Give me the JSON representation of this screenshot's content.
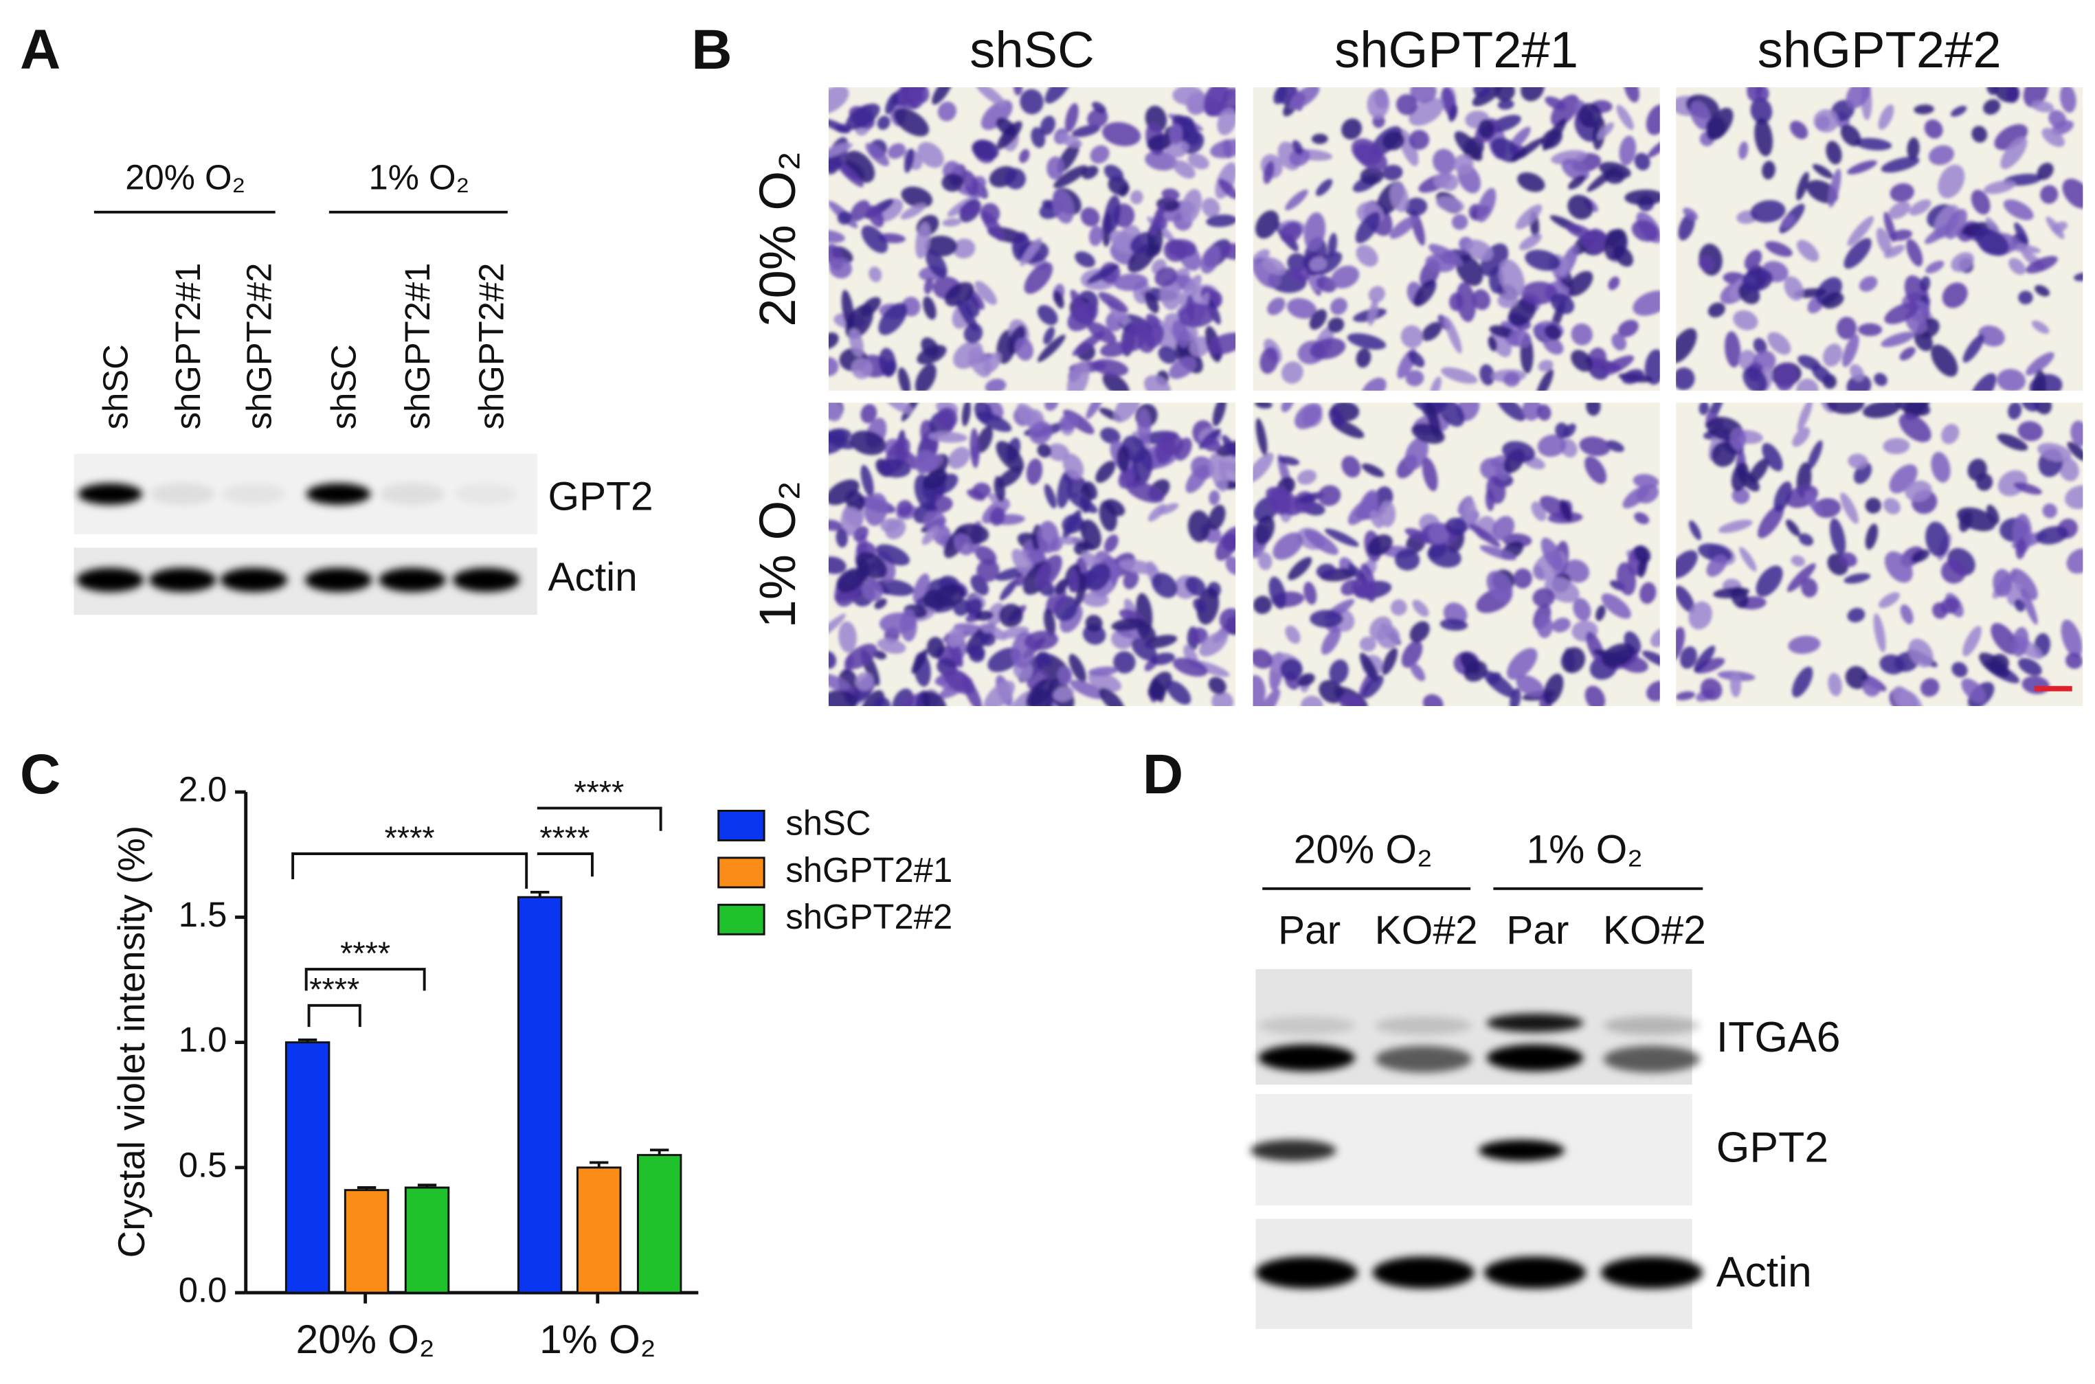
{
  "panel_a": {
    "label": "A",
    "conditions": [
      "20% O₂",
      "1% O₂"
    ],
    "lanes": [
      "shSC",
      "shGPT2#1",
      "shGPT2#2",
      "shSC",
      "shGPT2#1",
      "shGPT2#2"
    ],
    "blots": [
      "GPT2",
      "Actin"
    ]
  },
  "panel_b": {
    "label": "B",
    "columns": [
      "shSC",
      "shGPT2#1",
      "shGPT2#2"
    ],
    "rows": [
      "20% O₂",
      "1% O₂"
    ]
  },
  "panel_c": {
    "label": "C"
  },
  "panel_d": {
    "label": "D",
    "conditions": [
      "20% O₂",
      "1% O₂"
    ],
    "lanes": [
      "Par",
      "KO#2",
      "Par",
      "KO#2"
    ],
    "blots": [
      "ITGA6",
      "GPT2",
      "Actin"
    ]
  },
  "chart_data": {
    "type": "bar",
    "ylabel": "Crystal violet intensity (%)",
    "categories": [
      "20% O₂",
      "1% O₂"
    ],
    "series": [
      {
        "name": "shSC",
        "color": "#0a36f2",
        "values": [
          1.0,
          1.58
        ],
        "errors": [
          0.01,
          0.02
        ]
      },
      {
        "name": "shGPT2#1",
        "color": "#fb8c17",
        "values": [
          0.41,
          0.5
        ],
        "errors": [
          0.01,
          0.02
        ]
      },
      {
        "name": "shGPT2#2",
        "color": "#1fc22a",
        "values": [
          0.42,
          0.55
        ],
        "errors": [
          0.01,
          0.02
        ]
      }
    ],
    "ylim": [
      0,
      2
    ],
    "yticks": [
      {
        "value": 0,
        "label": "0.0"
      },
      0.5,
      {
        "value": 1,
        "label": "1.0"
      },
      1.5,
      {
        "value": 2,
        "label": "2.0"
      }
    ],
    "annotations": [
      "****",
      "****",
      "****",
      "****",
      "****"
    ]
  }
}
